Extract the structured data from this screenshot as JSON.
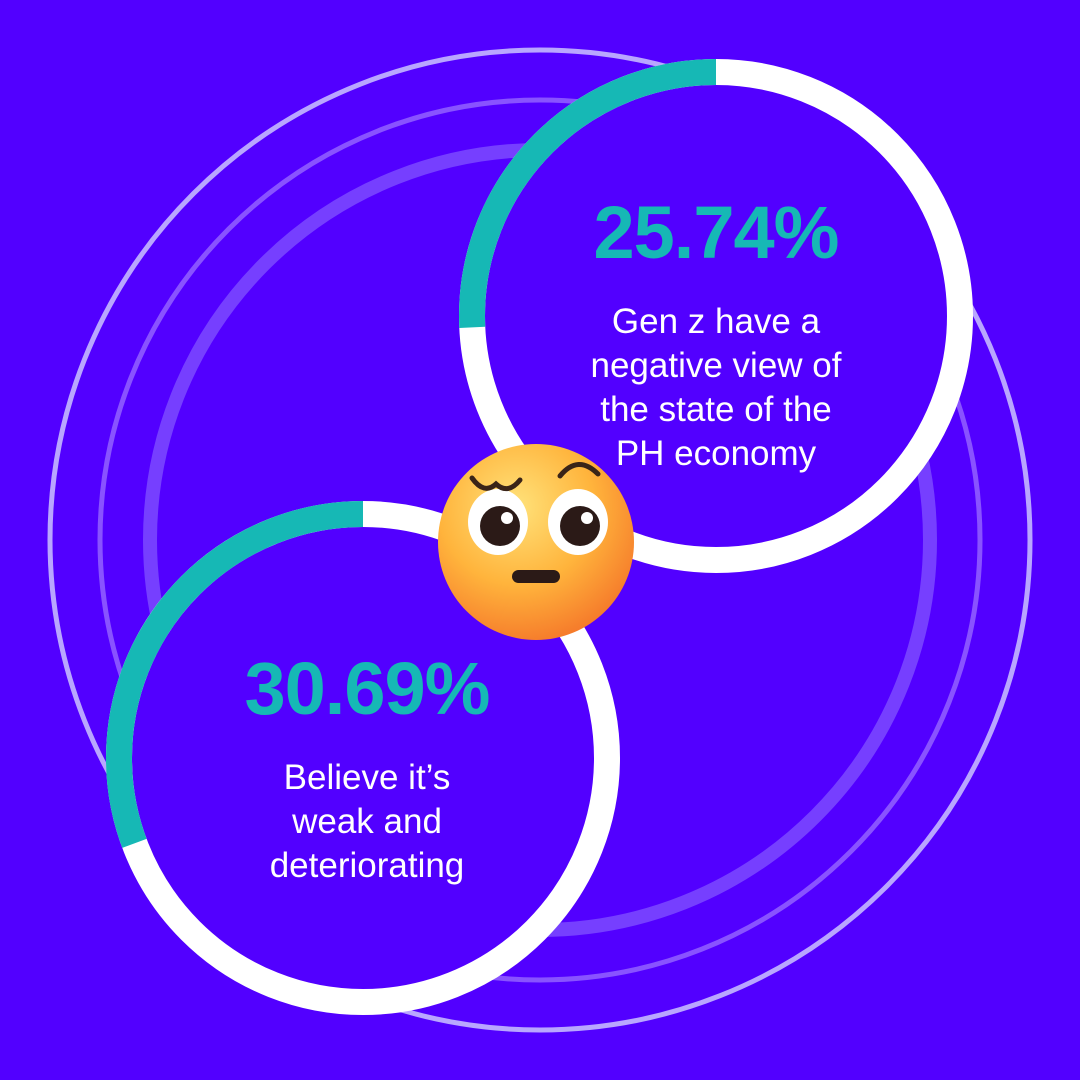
{
  "colors": {
    "background": "#5200ff",
    "accent": "#16b8b5",
    "ring_track": "#ffffff",
    "text": "#ffffff",
    "decor_ring_outer": "#b9a6ff",
    "decor_ring_inner": "#8f5cff"
  },
  "icon": "slightly-worried-face-emoji",
  "chart_data": [
    {
      "type": "pie",
      "style": "donut",
      "value_percent": 25.74,
      "value_label": "25.74%",
      "description_lines": [
        "Gen z have a",
        "negative view of",
        "the state of the",
        "PH economy"
      ]
    },
    {
      "type": "pie",
      "style": "donut",
      "value_percent": 30.69,
      "value_label": "30.69%",
      "description_lines": [
        "Believe it’s",
        "weak and",
        "deteriorating"
      ]
    }
  ]
}
